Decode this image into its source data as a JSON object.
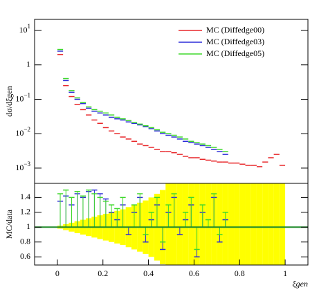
{
  "chart_data": [
    {
      "type": "histogram",
      "ylabel": "dσ/dξgen",
      "log": true,
      "xlim": [
        -0.1,
        1.1
      ],
      "ylim": [
        0.00036,
        21
      ],
      "yticks": [
        {
          "value": 0.001,
          "label": "10^−3"
        },
        {
          "value": 0.01,
          "label": "10^−2"
        },
        {
          "value": 0.1,
          "label": "10^−1"
        },
        1,
        {
          "value": 10,
          "label": "10^1"
        }
      ],
      "legend": "upper right",
      "bins": [
        0,
        0.025,
        0.05,
        0.075,
        0.1,
        0.125,
        0.15,
        0.175,
        0.2,
        0.225,
        0.25,
        0.275,
        0.3,
        0.325,
        0.35,
        0.375,
        0.4,
        0.425,
        0.45,
        0.475,
        0.5,
        0.525,
        0.55,
        0.575,
        0.6,
        0.625,
        0.65,
        0.675,
        0.7,
        0.725,
        0.75,
        0.775,
        0.8,
        0.825,
        0.85,
        0.875,
        0.9,
        0.925,
        0.95,
        0.975,
        1
      ],
      "series": [
        {
          "name": "MC (Diffedge00)",
          "color": "#e8282b",
          "values": [
            2.0,
            0.25,
            0.12,
            0.07,
            0.05,
            0.035,
            0.025,
            0.02,
            0.015,
            0.012,
            0.01,
            0.008,
            0.007,
            0.006,
            0.005,
            0.0045,
            0.004,
            0.0035,
            0.003,
            0.003,
            0.0028,
            0.0025,
            0.0022,
            0.002,
            0.002,
            0.0018,
            0.0017,
            0.0016,
            0.0015,
            0.0015,
            0.0014,
            0.0014,
            0.0013,
            0.0012,
            0.0012,
            0.0011,
            0.0015,
            0.002,
            0.0025,
            0.0012
          ]
        },
        {
          "name": "MC (Diffedge03)",
          "color": "#2b2bd8",
          "values": [
            2.5,
            0.35,
            0.16,
            0.1,
            0.075,
            0.055,
            0.045,
            0.04,
            0.035,
            0.03,
            0.027,
            0.025,
            0.022,
            0.02,
            0.018,
            0.016,
            0.014,
            0.012,
            0.01,
            0.009,
            0.008,
            0.007,
            0.006,
            0.0055,
            0.005,
            0.0045,
            0.004,
            0.0035,
            0.003,
            0.0025,
            null,
            null,
            null,
            null,
            null,
            null,
            null,
            null,
            null,
            null
          ]
        },
        {
          "name": "MC (Diffedge05)",
          "color": "#3ed82b",
          "values": [
            2.8,
            0.4,
            0.18,
            0.11,
            0.08,
            0.06,
            0.05,
            0.045,
            0.04,
            0.035,
            0.03,
            0.027,
            0.024,
            0.021,
            0.019,
            0.017,
            0.015,
            0.013,
            0.011,
            0.01,
            0.009,
            0.008,
            0.007,
            0.006,
            0.0055,
            0.005,
            0.0045,
            0.004,
            0.0035,
            0.003,
            null,
            null,
            null,
            null,
            null,
            null,
            null,
            null,
            null,
            null
          ]
        }
      ]
    },
    {
      "type": "ratio",
      "ylabel": "MC/data",
      "xlabel": "ξgen",
      "xlim": [
        -0.1,
        1.1
      ],
      "ylim": [
        0.49,
        1.59
      ],
      "xticks": [
        0,
        0.2,
        0.4,
        0.6,
        0.8,
        1
      ],
      "yticks": [
        0.6,
        0.8,
        1,
        1.2,
        1.4
      ],
      "reference": 1,
      "reference_color": "#1f8a2a",
      "band": {
        "color": "#ffff00",
        "errors": [
          0.02,
          0.04,
          0.06,
          0.08,
          0.1,
          0.12,
          0.14,
          0.16,
          0.18,
          0.2,
          0.22,
          0.24,
          0.27,
          0.3,
          0.33,
          0.36,
          0.4,
          0.45,
          0.5,
          0.6,
          0.6,
          0.6,
          0.6,
          0.6,
          0.6,
          0.6,
          0.6,
          0.6,
          0.6,
          0.6,
          0.6,
          0.6,
          0.6,
          0.6,
          0.6,
          0.6,
          0.6,
          0.6,
          0.6,
          0.6
        ]
      },
      "series": [
        {
          "color": "#2b2bd8",
          "values": [
            1.35,
            1.42,
            1.3,
            1.45,
            1.4,
            1.48,
            1.5,
            1.45,
            1.38,
            1.2,
            1.1,
            1.3,
            0.9,
            1.2,
            1.4,
            0.8,
            1.1,
            1.3,
            0.7,
            1.2,
            1.4,
            0.9,
            1.1,
            1.3,
            0.6,
            1.2,
            1.0,
            1.4,
            0.8,
            1.1,
            null,
            null,
            null,
            null,
            null,
            null,
            null,
            null,
            null,
            null
          ]
        },
        {
          "color": "#3ed82b",
          "values": [
            1.45,
            1.5,
            1.4,
            1.48,
            1.42,
            1.5,
            1.45,
            1.4,
            1.35,
            1.3,
            1.25,
            1.4,
            1.0,
            1.3,
            1.45,
            0.9,
            1.2,
            1.4,
            0.8,
            1.3,
            1.45,
            1.0,
            1.2,
            1.4,
            0.7,
            1.3,
            1.1,
            1.45,
            0.9,
            1.2,
            null,
            null,
            null,
            null,
            null,
            null,
            null,
            null,
            null,
            null
          ]
        }
      ]
    }
  ]
}
